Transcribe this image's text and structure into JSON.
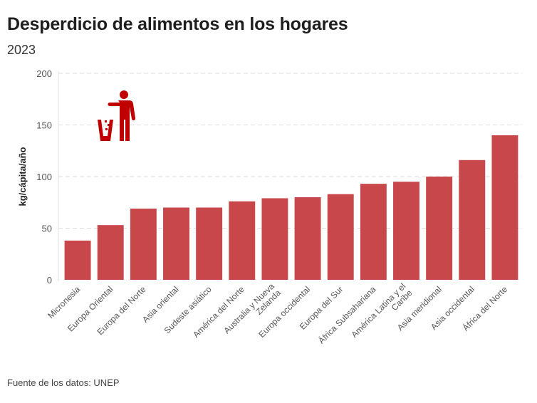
{
  "header": {
    "title": "Desperdicio de alimentos en los hogares",
    "subtitle": "2023"
  },
  "footer": {
    "source": "Fuente de los datos: UNEP"
  },
  "icon": {
    "name": "trash-person-icon",
    "color": "#c00000"
  },
  "chart_data": {
    "type": "bar",
    "title": "Desperdicio de alimentos en los hogares",
    "subtitle": "2023",
    "xlabel": "",
    "ylabel": "kg/cápita/año",
    "ylim": [
      0,
      200
    ],
    "yticks": [
      0,
      50,
      100,
      150,
      200
    ],
    "grid": true,
    "bar_color": "#c8474a",
    "categories": [
      [
        "Micronesia"
      ],
      [
        "Europa Oriental"
      ],
      [
        "Europa del Norte"
      ],
      [
        "Asia oriental"
      ],
      [
        "Sudeste asiático"
      ],
      [
        "América del Norte"
      ],
      [
        "Australia y Nueva",
        "Zelanda"
      ],
      [
        "Europa occidental"
      ],
      [
        "Europa del Sur"
      ],
      [
        "África Subsahariana"
      ],
      [
        "América Latina y el",
        "Caribe"
      ],
      [
        "Asia meridional"
      ],
      [
        "Asia occidental"
      ],
      [
        "África del Norte"
      ]
    ],
    "values": [
      38,
      53,
      69,
      70,
      70,
      76,
      79,
      80,
      83,
      93,
      95,
      100,
      116,
      140
    ],
    "source": "Fuente de los datos: UNEP"
  }
}
